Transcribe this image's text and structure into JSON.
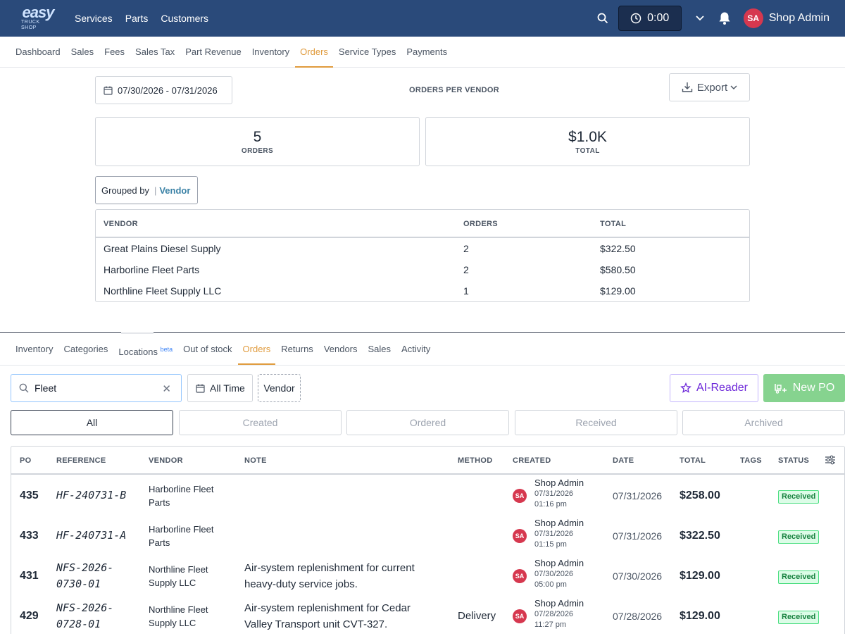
{
  "app": {
    "logo_top": "easy",
    "logo_bottom": "TRUCK SHOP",
    "nav": [
      "Services",
      "Parts",
      "Customers"
    ],
    "timer": "0:00",
    "user_initials": "SA",
    "user_name": "Shop Admin"
  },
  "report_nav": {
    "tabs": [
      "Dashboard",
      "Sales",
      "Fees",
      "Sales Tax",
      "Part Revenue",
      "Inventory",
      "Orders",
      "Service Types",
      "Payments"
    ],
    "active": "Orders"
  },
  "report": {
    "date_range": "07/30/2026 - 07/31/2026",
    "title": "ORDERS PER VENDOR",
    "export_label": "Export",
    "stats": {
      "orders_value": "5",
      "orders_label": "ORDERS",
      "total_value": "$1.0K",
      "total_label": "TOTAL"
    },
    "grouped_label": "Grouped by",
    "grouped_value": "Vendor",
    "columns": [
      "VENDOR",
      "ORDERS",
      "TOTAL"
    ],
    "rows": [
      {
        "vendor": "Great Plains Diesel Supply",
        "orders": "2",
        "total": "$322.50"
      },
      {
        "vendor": "Harborline Fleet Parts",
        "orders": "2",
        "total": "$580.50"
      },
      {
        "vendor": "Northline Fleet Supply LLC",
        "orders": "1",
        "total": "$129.00"
      }
    ]
  },
  "parts_nav": {
    "tabs": [
      "Inventory",
      "Categories",
      "Locations",
      "Out of stock",
      "Orders",
      "Returns",
      "Vendors",
      "Sales",
      "Activity"
    ],
    "locations_badge": "beta",
    "active": "Orders"
  },
  "filters": {
    "search_value": "Fleet",
    "time_label": "All Time",
    "vendor_label": "Vendor",
    "ai_reader_label": "AI-Reader",
    "new_po_label": "New PO"
  },
  "status_tabs": [
    "All",
    "Created",
    "Ordered",
    "Received",
    "Archived"
  ],
  "orders_table": {
    "columns": [
      "PO",
      "REFERENCE",
      "VENDOR",
      "NOTE",
      "METHOD",
      "CREATED",
      "DATE",
      "TOTAL",
      "TAGS",
      "STATUS"
    ],
    "rows": [
      {
        "po": "435",
        "ref": [
          "HF-240731-B"
        ],
        "vendor": [
          "Harborline Fleet",
          "Parts"
        ],
        "note": [],
        "method": "",
        "initials": "SA",
        "creator": "Shop Admin",
        "created_date": "07/31/2026",
        "created_time": "01:16 pm",
        "date": "07/31/2026",
        "total": "$258.00",
        "status": "Received"
      },
      {
        "po": "433",
        "ref": [
          "HF-240731-A"
        ],
        "vendor": [
          "Harborline Fleet",
          "Parts"
        ],
        "note": [],
        "method": "",
        "initials": "SA",
        "creator": "Shop Admin",
        "created_date": "07/31/2026",
        "created_time": "01:15 pm",
        "date": "07/31/2026",
        "total": "$322.50",
        "status": "Received"
      },
      {
        "po": "431",
        "ref": [
          "NFS-2026-",
          "0730-01"
        ],
        "vendor": [
          "Northline Fleet",
          "Supply LLC"
        ],
        "note": [
          "Air-system replenishment for current",
          "heavy-duty service jobs."
        ],
        "method": "",
        "initials": "SA",
        "creator": "Shop Admin",
        "created_date": "07/30/2026",
        "created_time": "05:00 pm",
        "date": "07/30/2026",
        "total": "$129.00",
        "status": "Received"
      },
      {
        "po": "429",
        "ref": [
          "NFS-2026-",
          "0728-01"
        ],
        "vendor": [
          "Northline Fleet",
          "Supply LLC"
        ],
        "note": [
          "Air-system replenishment for Cedar",
          "Valley Transport unit CVT-327."
        ],
        "method": "Delivery",
        "initials": "SA",
        "creator": "Shop Admin",
        "created_date": "07/28/2026",
        "created_time": "11:27 pm",
        "date": "07/28/2026",
        "total": "$129.00",
        "status": "Received"
      }
    ]
  }
}
